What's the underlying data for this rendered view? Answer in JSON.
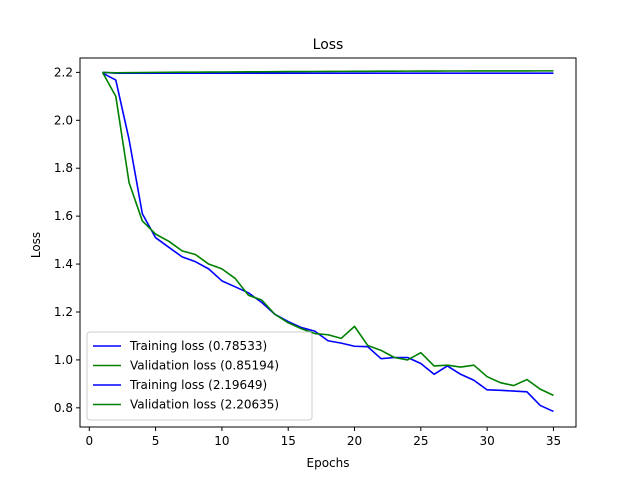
{
  "chart_data": {
    "type": "line",
    "title": "Loss",
    "xlabel": "Epochs",
    "ylabel": "Loss",
    "xlim": [
      -0.7,
      36.7
    ],
    "ylim": [
      0.72,
      2.26
    ],
    "xticks": [
      0,
      5,
      10,
      15,
      20,
      25,
      30,
      35
    ],
    "yticks": [
      0.8,
      1.0,
      1.2,
      1.4,
      1.6,
      1.8,
      2.0,
      2.2
    ],
    "ytick_decimals": 1,
    "grid": false,
    "legend": "lower-left",
    "x": [
      1,
      2,
      3,
      4,
      5,
      6,
      7,
      8,
      9,
      10,
      11,
      12,
      13,
      14,
      15,
      16,
      17,
      18,
      19,
      20,
      21,
      22,
      23,
      24,
      25,
      26,
      27,
      28,
      29,
      30,
      31,
      32,
      33,
      34,
      35
    ],
    "series": [
      {
        "name": "Training loss (0.78533)",
        "color": "#0000ff",
        "values": [
          2.197,
          2.168,
          1.92,
          1.61,
          1.51,
          1.47,
          1.43,
          1.41,
          1.38,
          1.33,
          1.305,
          1.28,
          1.24,
          1.19,
          1.16,
          1.135,
          1.12,
          1.08,
          1.07,
          1.057,
          1.055,
          1.005,
          1.01,
          1.01,
          0.985,
          0.94,
          0.975,
          0.94,
          0.915,
          0.875,
          0.873,
          0.87,
          0.867,
          0.81,
          0.785
        ]
      },
      {
        "name": "Validation loss (0.85194)",
        "color": "#008000",
        "values": [
          2.2,
          2.1,
          1.74,
          1.58,
          1.525,
          1.495,
          1.455,
          1.44,
          1.4,
          1.38,
          1.34,
          1.27,
          1.25,
          1.19,
          1.155,
          1.13,
          1.11,
          1.105,
          1.09,
          1.14,
          1.06,
          1.04,
          1.01,
          1.0,
          1.03,
          0.975,
          0.978,
          0.97,
          0.978,
          0.93,
          0.905,
          0.893,
          0.918,
          0.878,
          0.852
        ]
      },
      {
        "name": "Training loss (2.19649)",
        "color": "#0000ff",
        "values": [
          2.2,
          2.1967,
          2.1967,
          2.1967,
          2.1967,
          2.1967,
          2.1967,
          2.1967,
          2.1967,
          2.1967,
          2.1967,
          2.1967,
          2.1967,
          2.1967,
          2.1966,
          2.1966,
          2.1966,
          2.1966,
          2.1966,
          2.1966,
          2.1966,
          2.1966,
          2.1966,
          2.1965,
          2.1965,
          2.1965,
          2.1965,
          2.1965,
          2.1965,
          2.1965,
          2.1965,
          2.1965,
          2.1965,
          2.1965,
          2.1965
        ]
      },
      {
        "name": "Validation loss (2.20635)",
        "color": "#008000",
        "values": [
          2.2,
          2.1985,
          2.199,
          2.1995,
          2.2,
          2.2003,
          2.2006,
          2.201,
          2.2013,
          2.2016,
          2.202,
          2.2023,
          2.2026,
          2.2029,
          2.2032,
          2.2035,
          2.2037,
          2.204,
          2.2042,
          2.2044,
          2.2046,
          2.2048,
          2.205,
          2.2052,
          2.2054,
          2.2055,
          2.2057,
          2.2058,
          2.2059,
          2.206,
          2.2061,
          2.2062,
          2.2062,
          2.2063,
          2.2063
        ]
      }
    ]
  }
}
